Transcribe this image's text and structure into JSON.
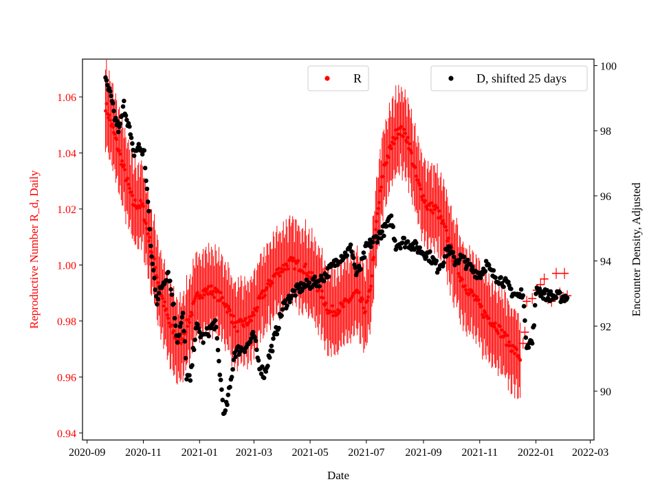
{
  "chart_data": {
    "type": "scatter",
    "title": "",
    "xlabel": "Date",
    "ylabel_left": "Reproductive Number R_d, Daily",
    "ylabel_right": "Encounter Density, Adjusted",
    "xlim": [
      "2020-08-27",
      "2022-03-05"
    ],
    "ylim_left": [
      0.9375,
      1.0735
    ],
    "ylim_right": [
      88.5,
      100.2
    ],
    "x_ticks": [
      "2020-09",
      "2020-11",
      "2021-01",
      "2021-03",
      "2021-05",
      "2021-07",
      "2021-09",
      "2021-11",
      "2022-01",
      "2022-03"
    ],
    "y_ticks_left": [
      "0.94",
      "0.96",
      "0.98",
      "1.00",
      "1.02",
      "1.04",
      "1.06"
    ],
    "y_ticks_right": [
      "90",
      "92",
      "94",
      "96",
      "98",
      "100"
    ],
    "colors": {
      "r": "#ff0000",
      "d": "#000000",
      "left_axis": "#ff0000",
      "right_axis": "#000000"
    },
    "legend": [
      {
        "label": "R",
        "color": "#ff0000",
        "placement": "top-center"
      },
      {
        "label": "D, shifted 25 days",
        "color": "#000000",
        "placement": "top-right"
      }
    ],
    "series": [
      {
        "name": "R",
        "axis": "left",
        "color": "#ff0000",
        "error_band": 0.016,
        "anchors": [
          [
            "2020-09-21",
            1.057
          ],
          [
            "2020-10-01",
            1.046
          ],
          [
            "2020-10-11",
            1.034
          ],
          [
            "2020-10-21",
            1.022
          ],
          [
            "2020-10-31",
            1.021
          ],
          [
            "2020-11-10",
            1.005
          ],
          [
            "2020-11-20",
            0.99
          ],
          [
            "2020-11-30",
            0.978
          ],
          [
            "2020-12-10",
            0.972
          ],
          [
            "2020-12-20",
            0.98
          ],
          [
            "2020-12-31",
            0.99
          ],
          [
            "2021-01-15",
            0.991
          ],
          [
            "2021-01-28",
            0.987
          ],
          [
            "2021-02-10",
            0.978
          ],
          [
            "2021-02-25",
            0.98
          ],
          [
            "2021-03-10",
            0.989
          ],
          [
            "2021-03-25",
            0.997
          ],
          [
            "2021-04-10",
            1.001
          ],
          [
            "2021-04-25",
            0.999
          ],
          [
            "2021-05-10",
            0.992
          ],
          [
            "2021-05-22",
            0.983
          ],
          [
            "2021-06-05",
            0.985
          ],
          [
            "2021-06-20",
            0.99
          ],
          [
            "2021-06-30",
            0.984
          ],
          [
            "2021-07-05",
            0.99
          ],
          [
            "2021-07-12",
            1.015
          ],
          [
            "2021-07-20",
            1.035
          ],
          [
            "2021-07-30",
            1.044
          ],
          [
            "2021-08-05",
            1.049
          ],
          [
            "2021-08-15",
            1.045
          ],
          [
            "2021-08-25",
            1.03
          ],
          [
            "2021-09-05",
            1.021
          ],
          [
            "2021-09-15",
            1.02
          ],
          [
            "2021-09-25",
            1.012
          ],
          [
            "2021-10-05",
            1.001
          ],
          [
            "2021-10-15",
            0.993
          ],
          [
            "2021-10-25",
            0.989
          ],
          [
            "2021-11-05",
            0.983
          ],
          [
            "2021-11-20",
            0.978
          ],
          [
            "2021-12-05",
            0.971
          ],
          [
            "2021-12-15",
            0.967
          ]
        ],
        "outliers": [
          [
            "2021-12-18",
            0.972
          ],
          [
            "2021-12-20",
            0.976
          ],
          [
            "2021-12-22",
            0.987
          ],
          [
            "2021-12-28",
            0.988
          ],
          [
            "2022-01-02",
            0.991
          ],
          [
            "2022-01-06",
            0.993
          ],
          [
            "2022-01-10",
            0.995
          ],
          [
            "2022-01-14",
            0.988
          ],
          [
            "2022-01-18",
            0.987
          ],
          [
            "2022-01-23",
            0.997
          ],
          [
            "2022-01-27",
            0.99
          ],
          [
            "2022-02-01",
            0.997
          ],
          [
            "2022-02-04",
            0.989
          ]
        ]
      },
      {
        "name": "D, shifted 25 days",
        "axis": "right",
        "color": "#000000",
        "anchors": [
          [
            "2020-09-21",
            99.5
          ],
          [
            "2020-09-26",
            99.1
          ],
          [
            "2020-10-01",
            98.4
          ],
          [
            "2020-10-06",
            98.0
          ],
          [
            "2020-10-11",
            98.8
          ],
          [
            "2020-10-16",
            98.2
          ],
          [
            "2020-10-21",
            97.3
          ],
          [
            "2020-10-27",
            97.5
          ],
          [
            "2020-11-02",
            97.3
          ],
          [
            "2020-11-06",
            95.8
          ],
          [
            "2020-11-10",
            94.1
          ],
          [
            "2020-11-16",
            92.8
          ],
          [
            "2020-11-22",
            93.3
          ],
          [
            "2020-11-28",
            93.7
          ],
          [
            "2020-12-03",
            92.8
          ],
          [
            "2020-12-08",
            91.6
          ],
          [
            "2020-12-14",
            92.3
          ],
          [
            "2020-12-18",
            90.5
          ],
          [
            "2020-12-22",
            90.3
          ],
          [
            "2020-12-28",
            92.0
          ],
          [
            "2021-01-05",
            91.6
          ],
          [
            "2021-01-12",
            91.9
          ],
          [
            "2021-01-18",
            92.1
          ],
          [
            "2021-01-24",
            90.3
          ],
          [
            "2021-01-28",
            89.2
          ],
          [
            "2021-02-03",
            90.1
          ],
          [
            "2021-02-08",
            91.2
          ],
          [
            "2021-02-15",
            91.3
          ],
          [
            "2021-02-22",
            91.4
          ],
          [
            "2021-03-01",
            91.7
          ],
          [
            "2021-03-06",
            90.9
          ],
          [
            "2021-03-12",
            90.5
          ],
          [
            "2021-03-18",
            91.1
          ],
          [
            "2021-03-25",
            91.8
          ],
          [
            "2021-04-02",
            92.6
          ],
          [
            "2021-04-12",
            93.0
          ],
          [
            "2021-04-22",
            93.2
          ],
          [
            "2021-05-02",
            93.3
          ],
          [
            "2021-05-12",
            93.4
          ],
          [
            "2021-05-18",
            93.6
          ],
          [
            "2021-05-25",
            93.8
          ],
          [
            "2021-06-01",
            94.1
          ],
          [
            "2021-06-08",
            94.2
          ],
          [
            "2021-06-15",
            94.4
          ],
          [
            "2021-06-20",
            93.6
          ],
          [
            "2021-06-25",
            93.8
          ],
          [
            "2021-07-01",
            94.4
          ],
          [
            "2021-07-08",
            94.6
          ],
          [
            "2021-07-15",
            94.8
          ],
          [
            "2021-07-22",
            95.0
          ],
          [
            "2021-07-28",
            95.3
          ],
          [
            "2021-08-02",
            94.5
          ],
          [
            "2021-08-10",
            94.6
          ],
          [
            "2021-08-20",
            94.5
          ],
          [
            "2021-08-30",
            94.3
          ],
          [
            "2021-09-06",
            94.2
          ],
          [
            "2021-09-12",
            94.0
          ],
          [
            "2021-09-16",
            93.8
          ],
          [
            "2021-09-22",
            94.0
          ],
          [
            "2021-09-28",
            94.4
          ],
          [
            "2021-10-05",
            94.0
          ],
          [
            "2021-10-12",
            94.1
          ],
          [
            "2021-10-18",
            93.9
          ],
          [
            "2021-10-25",
            93.7
          ],
          [
            "2021-11-02",
            93.6
          ],
          [
            "2021-11-08",
            93.9
          ],
          [
            "2021-11-14",
            93.6
          ],
          [
            "2021-11-20",
            93.5
          ],
          [
            "2021-11-26",
            93.4
          ],
          [
            "2021-12-02",
            93.2
          ],
          [
            "2021-12-08",
            93.0
          ],
          [
            "2021-12-14",
            92.9
          ],
          [
            "2021-12-18",
            93.1
          ],
          [
            "2021-12-20",
            92.0
          ],
          [
            "2021-12-22",
            91.5
          ],
          [
            "2021-12-28",
            91.5
          ],
          [
            "2022-01-02",
            93.2
          ],
          [
            "2022-01-08",
            93.0
          ],
          [
            "2022-01-20",
            92.9
          ],
          [
            "2022-02-04",
            92.9
          ]
        ]
      }
    ]
  }
}
